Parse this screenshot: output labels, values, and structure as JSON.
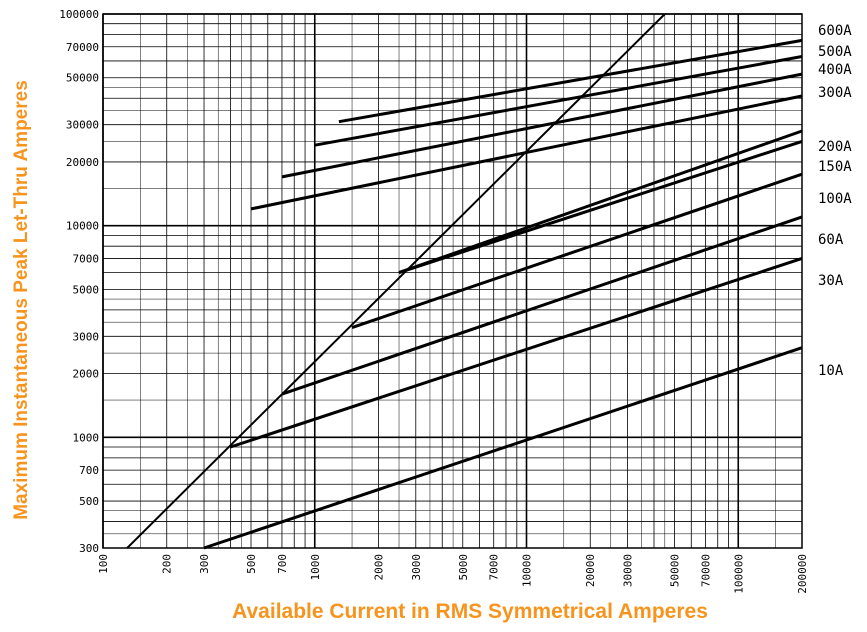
{
  "chart_data": {
    "type": "line",
    "title": "",
    "xlabel": "Available Current in RMS Symmetrical Amperes",
    "ylabel": "Maximum Instantaneous Peak Let-Thru Amperes",
    "xscale": "log",
    "yscale": "log",
    "xlim": [
      100,
      200000
    ],
    "ylim": [
      300,
      100000
    ],
    "grid": true,
    "x_ticks": [
      "100",
      "200",
      "300",
      "500",
      "700",
      "1000",
      "2000",
      "3000",
      "5000",
      "7000",
      "10000",
      "20000",
      "30000",
      "50000",
      "70000",
      "100000",
      "200000"
    ],
    "y_ticks": [
      "100000",
      "70000",
      "50000",
      "30000",
      "20000",
      "10000",
      "7000",
      "5000",
      "3000",
      "2000",
      "1000",
      "700",
      "500",
      "300"
    ],
    "series": [
      {
        "name": "600A",
        "x": [
          1300,
          200000
        ],
        "y": [
          31000,
          75000
        ]
      },
      {
        "name": "500A",
        "x": [
          1000,
          200000
        ],
        "y": [
          24000,
          63000
        ]
      },
      {
        "name": "400A",
        "x": [
          700,
          200000
        ],
        "y": [
          17000,
          52000
        ]
      },
      {
        "name": "300A",
        "x": [
          500,
          200000
        ],
        "y": [
          12000,
          41000
        ]
      },
      {
        "name": "200A",
        "x": [
          2500,
          200000
        ],
        "y": [
          6000,
          28000
        ]
      },
      {
        "name": "150A",
        "x": [
          2500,
          200000
        ],
        "y": [
          6000,
          25000
        ]
      },
      {
        "name": "100A",
        "x": [
          1500,
          200000
        ],
        "y": [
          3300,
          17500
        ]
      },
      {
        "name": "60A",
        "x": [
          700,
          200000
        ],
        "y": [
          1600,
          11000
        ]
      },
      {
        "name": "30A",
        "x": [
          400,
          200000
        ],
        "y": [
          900,
          7000
        ]
      },
      {
        "name": "10A",
        "x": [
          300,
          200000
        ],
        "y": [
          300,
          2650
        ]
      }
    ],
    "reference_line": {
      "x": [
        130,
        45000
      ],
      "y": [
        300,
        100000
      ]
    }
  }
}
